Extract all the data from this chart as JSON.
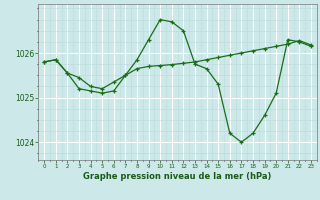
{
  "bg_color": "#cce8e8",
  "grid_color_major": "#ffffff",
  "grid_color_minor": "#bbdada",
  "line_color": "#1a6e1a",
  "xlabel": "Graphe pression niveau de la mer (hPa)",
  "xlabel_color": "#1a5c1a",
  "tick_label_color": "#1a5c1a",
  "ylim": [
    1023.6,
    1027.1
  ],
  "xlim": [
    -0.5,
    23.5
  ],
  "yticks": [
    1024,
    1025,
    1026
  ],
  "xticks": [
    0,
    1,
    2,
    3,
    4,
    5,
    6,
    7,
    8,
    9,
    10,
    11,
    12,
    13,
    14,
    15,
    16,
    17,
    18,
    19,
    20,
    21,
    22,
    23
  ],
  "series1": [
    [
      0,
      1025.8
    ],
    [
      1,
      1025.85
    ],
    [
      2,
      1025.55
    ],
    [
      3,
      1025.2
    ],
    [
      4,
      1025.15
    ],
    [
      5,
      1025.1
    ],
    [
      6,
      1025.15
    ],
    [
      7,
      1025.5
    ],
    [
      8,
      1025.85
    ],
    [
      9,
      1026.3
    ],
    [
      10,
      1026.75
    ],
    [
      11,
      1026.7
    ],
    [
      12,
      1026.5
    ],
    [
      13,
      1025.75
    ],
    [
      14,
      1025.65
    ],
    [
      15,
      1025.3
    ],
    [
      16,
      1024.2
    ],
    [
      17,
      1024.0
    ],
    [
      18,
      1024.2
    ],
    [
      19,
      1024.6
    ],
    [
      20,
      1025.1
    ],
    [
      21,
      1026.3
    ],
    [
      22,
      1026.25
    ],
    [
      23,
      1026.15
    ]
  ],
  "series2": [
    [
      0,
      1025.8
    ],
    [
      1,
      1025.85
    ],
    [
      2,
      1025.55
    ],
    [
      3,
      1025.45
    ],
    [
      4,
      1025.25
    ],
    [
      5,
      1025.2
    ],
    [
      6,
      1025.35
    ],
    [
      7,
      1025.5
    ],
    [
      8,
      1025.65
    ],
    [
      9,
      1025.7
    ],
    [
      10,
      1025.72
    ],
    [
      11,
      1025.74
    ],
    [
      12,
      1025.77
    ],
    [
      13,
      1025.8
    ],
    [
      14,
      1025.85
    ],
    [
      15,
      1025.9
    ],
    [
      16,
      1025.95
    ],
    [
      17,
      1026.0
    ],
    [
      18,
      1026.05
    ],
    [
      19,
      1026.1
    ],
    [
      20,
      1026.15
    ],
    [
      21,
      1026.2
    ],
    [
      22,
      1026.28
    ],
    [
      23,
      1026.18
    ]
  ]
}
